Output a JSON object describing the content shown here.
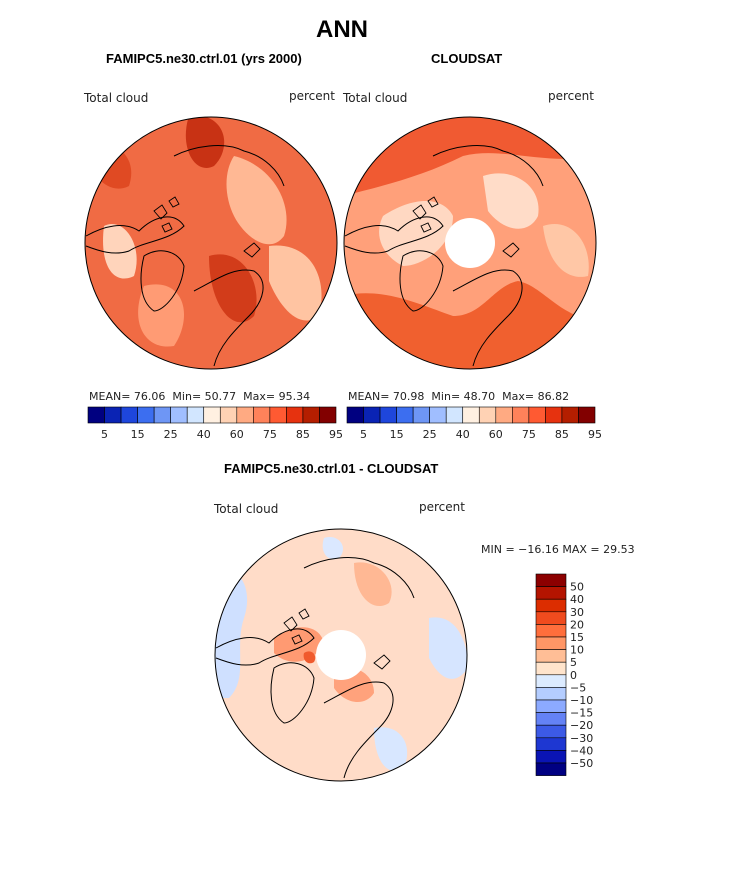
{
  "figure": {
    "title": "ANN"
  },
  "panels": [
    {
      "id": "model",
      "title": "FAMIPC5.ne30.ctrl.01 (yrs 2000)",
      "left_label": "Total cloud",
      "right_label": "percent",
      "stats": {
        "mean_label": "MEAN=",
        "mean": "76.06",
        "min_label": "Min=",
        "min": "50.77",
        "max_label": "Max=",
        "max": "95.34"
      },
      "has_polar_hole": false
    },
    {
      "id": "obs",
      "title": "CLOUDSAT",
      "left_label": "Total cloud",
      "right_label": "percent",
      "stats": {
        "mean_label": "MEAN=",
        "mean": "70.98",
        "min_label": "Min=",
        "min": "48.70",
        "max_label": "Max=",
        "max": "86.82"
      },
      "has_polar_hole": true
    },
    {
      "id": "diff",
      "title": "FAMIPC5.ne30.ctrl.01 - CLOUDSAT",
      "left_label": "Total cloud",
      "right_label": "percent",
      "minmax": "MIN = −16.16 MAX =   29.53",
      "has_polar_hole": true
    }
  ],
  "colorbar_horizontal": {
    "colors": [
      "#000080",
      "#0a23b4",
      "#1e46dc",
      "#3c6ef0",
      "#6e96f5",
      "#a0beff",
      "#d2e6ff",
      "#fff0e1",
      "#ffd2b4",
      "#ffaa82",
      "#ff825a",
      "#ff5a32",
      "#e6320f",
      "#b41e00",
      "#820000"
    ],
    "tick_labels": [
      "5",
      "15",
      "25",
      "40",
      "60",
      "75",
      "85",
      "95"
    ]
  },
  "colorbar_vertical": {
    "colors_top_to_bottom": [
      "#8c0000",
      "#b41400",
      "#dc2d00",
      "#f04b1e",
      "#ff6e3c",
      "#ff9666",
      "#ffbe96",
      "#ffe4cc",
      "#dcebff",
      "#b4cdff",
      "#8caaff",
      "#6482f5",
      "#3c5ae6",
      "#1e37d2",
      "#0a14b4",
      "#000082"
    ],
    "tick_labels": [
      "50",
      "40",
      "30",
      "20",
      "15",
      "10",
      "5",
      "0",
      "−5",
      "−10",
      "−15",
      "−20",
      "−30",
      "−40",
      "−50"
    ]
  },
  "colors": {
    "land_outline": "#000000",
    "model_base": "#f0643c",
    "obs_base": "#ff9a72",
    "diff_base": "#ffd9c2",
    "diff_blue": "#cfe0ff"
  }
}
